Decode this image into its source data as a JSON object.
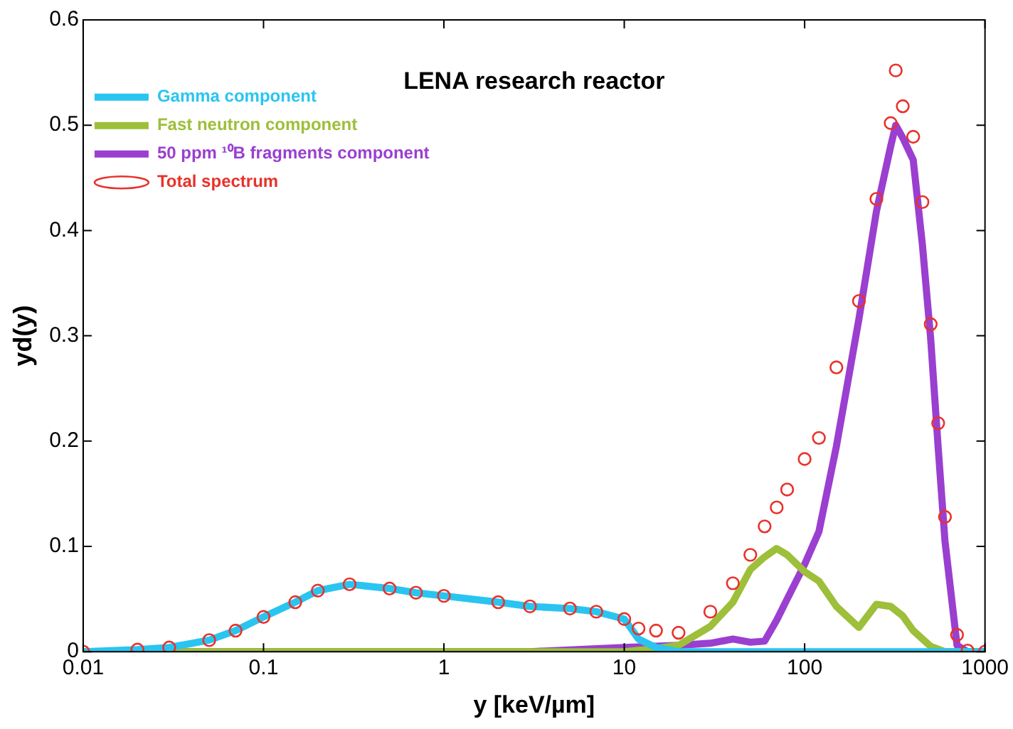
{
  "chart_data": {
    "type": "line",
    "title": "LENA research reactor",
    "xlabel": "y [keV/µm]",
    "ylabel": "yd(y)",
    "log": "x",
    "grid": false,
    "legend": "top left",
    "line_style": "solid",
    "xlim": [
      0.01,
      1000
    ],
    "xticks": [
      0.01,
      0.1,
      1,
      10,
      100,
      1000
    ],
    "ylim": [
      0,
      0.6
    ],
    "yticks": [
      0,
      0.1,
      0.2,
      0.3,
      0.4,
      0.5,
      0.6
    ],
    "series": [
      {
        "name": "Gamma component",
        "color": "#29c5f0",
        "marker": "none",
        "x": [
          0.01,
          0.02,
          0.03,
          0.05,
          0.07,
          0.1,
          0.15,
          0.2,
          0.3,
          0.5,
          0.7,
          1,
          2,
          3,
          5,
          7,
          10,
          12,
          15,
          20,
          50,
          100,
          300,
          1000
        ],
        "values": [
          0,
          0.002,
          0.004,
          0.011,
          0.02,
          0.033,
          0.047,
          0.058,
          0.064,
          0.06,
          0.056,
          0.053,
          0.047,
          0.043,
          0.041,
          0.038,
          0.031,
          0.012,
          0.004,
          0,
          0,
          0,
          0,
          0
        ]
      },
      {
        "name": "Fast neutron component",
        "color": "#9dbf3a",
        "marker": "none",
        "x": [
          0.01,
          1,
          10,
          15,
          20,
          30,
          40,
          50,
          60,
          70,
          80,
          100,
          120,
          150,
          200,
          250,
          300,
          350,
          400,
          500,
          600,
          1000
        ],
        "values": [
          0,
          0,
          0,
          0.003,
          0.006,
          0.024,
          0.047,
          0.078,
          0.09,
          0.098,
          0.092,
          0.076,
          0.067,
          0.043,
          0.023,
          0.045,
          0.043,
          0.034,
          0.02,
          0.005,
          0,
          0
        ]
      },
      {
        "name": "50 ppm ¹⁰B fragments component",
        "color": "#9a3fd0",
        "marker": "none",
        "x": [
          0.01,
          3,
          10,
          20,
          30,
          40,
          50,
          60,
          70,
          80,
          100,
          120,
          150,
          200,
          250,
          300,
          320,
          350,
          400,
          450,
          500,
          550,
          600,
          700,
          800,
          1000
        ],
        "values": [
          0,
          0,
          0.004,
          0.006,
          0.008,
          0.012,
          0.009,
          0.01,
          0.03,
          0.05,
          0.083,
          0.114,
          0.195,
          0.316,
          0.418,
          0.48,
          0.5,
          0.488,
          0.467,
          0.386,
          0.297,
          0.194,
          0.105,
          0.006,
          0,
          0
        ]
      },
      {
        "name": "Total spectrum",
        "type": "scatter",
        "color": "#e8322a",
        "marker": "circle",
        "x": [
          0.01,
          0.02,
          0.03,
          0.05,
          0.07,
          0.1,
          0.15,
          0.2,
          0.3,
          0.5,
          0.7,
          1,
          2,
          3,
          5,
          7,
          10,
          12,
          15,
          20,
          30,
          40,
          50,
          60,
          70,
          80,
          100,
          120,
          150,
          200,
          250,
          300,
          320,
          350,
          400,
          450,
          500,
          550,
          600,
          700,
          800,
          1000
        ],
        "values": [
          0,
          0.002,
          0.004,
          0.011,
          0.02,
          0.033,
          0.047,
          0.058,
          0.064,
          0.06,
          0.056,
          0.053,
          0.047,
          0.043,
          0.041,
          0.038,
          0.031,
          0.022,
          0.02,
          0.018,
          0.038,
          0.065,
          0.092,
          0.119,
          0.137,
          0.154,
          0.183,
          0.203,
          0.27,
          0.333,
          0.43,
          0.502,
          0.552,
          0.518,
          0.489,
          0.427,
          0.311,
          0.217,
          0.128,
          0.016,
          0.001,
          0
        ]
      }
    ]
  }
}
